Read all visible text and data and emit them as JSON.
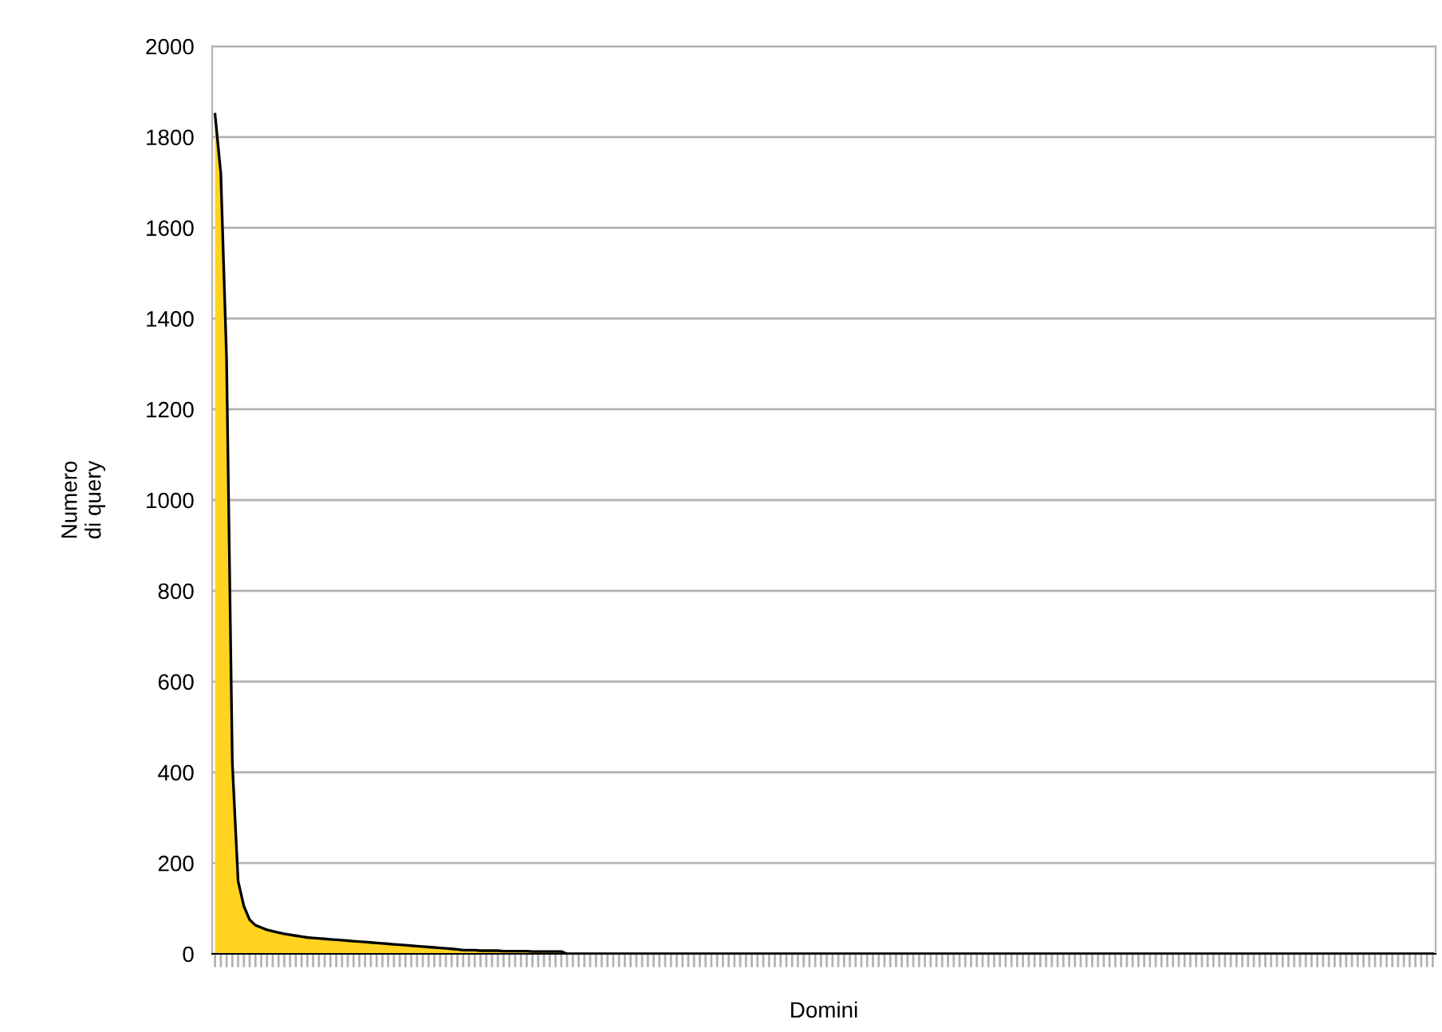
{
  "chart_data": {
    "type": "area",
    "xlabel": "Domini",
    "ylabel": "Numero\ndi query",
    "categories": [
      null,
      null,
      null,
      null,
      null,
      null,
      null,
      null,
      null,
      null,
      null,
      null,
      null,
      null,
      null,
      null,
      null,
      null,
      null,
      null,
      null,
      null,
      null,
      null,
      null,
      null,
      null,
      null,
      null,
      null,
      null,
      null,
      null,
      null,
      null,
      null,
      null,
      null,
      null,
      null,
      null,
      null,
      null,
      null,
      null,
      null,
      null,
      null,
      null,
      null,
      null,
      null,
      null,
      null,
      null,
      null,
      null,
      null,
      null,
      null,
      null,
      null,
      null,
      null,
      null,
      null,
      null,
      null,
      null,
      null,
      null,
      null,
      null,
      null,
      null,
      null,
      null,
      null,
      null,
      null,
      null,
      null,
      null,
      null,
      null,
      null,
      null,
      null,
      null,
      null,
      null,
      null,
      null,
      null,
      null,
      null,
      null,
      null,
      null,
      null,
      null,
      null,
      null,
      null,
      null,
      null,
      null,
      null,
      null,
      null,
      null,
      null,
      null,
      null,
      null,
      null,
      null,
      null,
      null,
      null,
      null,
      null,
      null,
      null,
      null,
      null,
      null,
      null,
      null,
      null,
      null,
      null,
      null,
      null,
      null,
      null,
      null,
      null,
      null,
      null,
      null,
      null,
      null,
      null,
      null,
      null,
      null,
      null,
      null,
      null,
      null,
      null,
      null,
      null,
      null,
      null,
      null,
      null,
      null,
      null,
      null,
      null,
      null,
      null,
      null,
      null,
      null,
      null,
      null,
      null,
      null,
      null,
      null,
      null,
      null,
      null,
      null,
      null,
      null,
      null,
      null,
      null,
      null,
      null,
      null,
      null,
      null,
      null,
      null,
      null,
      null,
      null,
      null,
      null,
      null,
      null,
      null,
      null,
      null,
      null,
      null,
      null,
      null,
      null,
      null,
      null,
      null,
      null,
      null,
      null,
      null,
      null
    ],
    "series": [
      {
        "color": "#ffd320",
        "values": [
          1850,
          1720,
          1310,
          420,
          160,
          105,
          75,
          63,
          58,
          53,
          50,
          47,
          44,
          42,
          40,
          38,
          36,
          35,
          34,
          33,
          32,
          31,
          30,
          29,
          28,
          27,
          26,
          25,
          24,
          23,
          22,
          21,
          20,
          19,
          18,
          17,
          16,
          15,
          14,
          13,
          12,
          11,
          10,
          8,
          8,
          8,
          7,
          7,
          7,
          7,
          6,
          6,
          6,
          6,
          6,
          5,
          5,
          5,
          5,
          5,
          5,
          0,
          0,
          0,
          0,
          0,
          0,
          0,
          0,
          0,
          0,
          0,
          0,
          0,
          0,
          0,
          0,
          0,
          0,
          0,
          0,
          0,
          0,
          0,
          0,
          0,
          0,
          0,
          0,
          0,
          0,
          0,
          0,
          0,
          0,
          0,
          0,
          0,
          0,
          0,
          0,
          0,
          0,
          0,
          0,
          0,
          0,
          0,
          0,
          0,
          0,
          0,
          0,
          0,
          0,
          0,
          0,
          0,
          0,
          0,
          0,
          0,
          0,
          0,
          0,
          0,
          0,
          0,
          0,
          0,
          0,
          0,
          0,
          0,
          0,
          0,
          0,
          0,
          0,
          0,
          0,
          0,
          0,
          0,
          0,
          0,
          0,
          0,
          0,
          0,
          0,
          0,
          0,
          0,
          0,
          0,
          0,
          0,
          0,
          0,
          0,
          0,
          0,
          0,
          0,
          0,
          0,
          0,
          0,
          0,
          0,
          0,
          0,
          0,
          0,
          0,
          0,
          0,
          0,
          0,
          0,
          0,
          0,
          0,
          0,
          0,
          0,
          0,
          0,
          0,
          0,
          0,
          0,
          0,
          0,
          0,
          0,
          0,
          0,
          0,
          0,
          0,
          0,
          0,
          0,
          0,
          0,
          0,
          0,
          0,
          0,
          0
        ]
      }
    ],
    "ylim": [
      0,
      2000
    ],
    "yticks": [
      0,
      200,
      400,
      600,
      800,
      1000,
      1200,
      1400,
      1600,
      1800,
      2000
    ],
    "grid": "y"
  }
}
